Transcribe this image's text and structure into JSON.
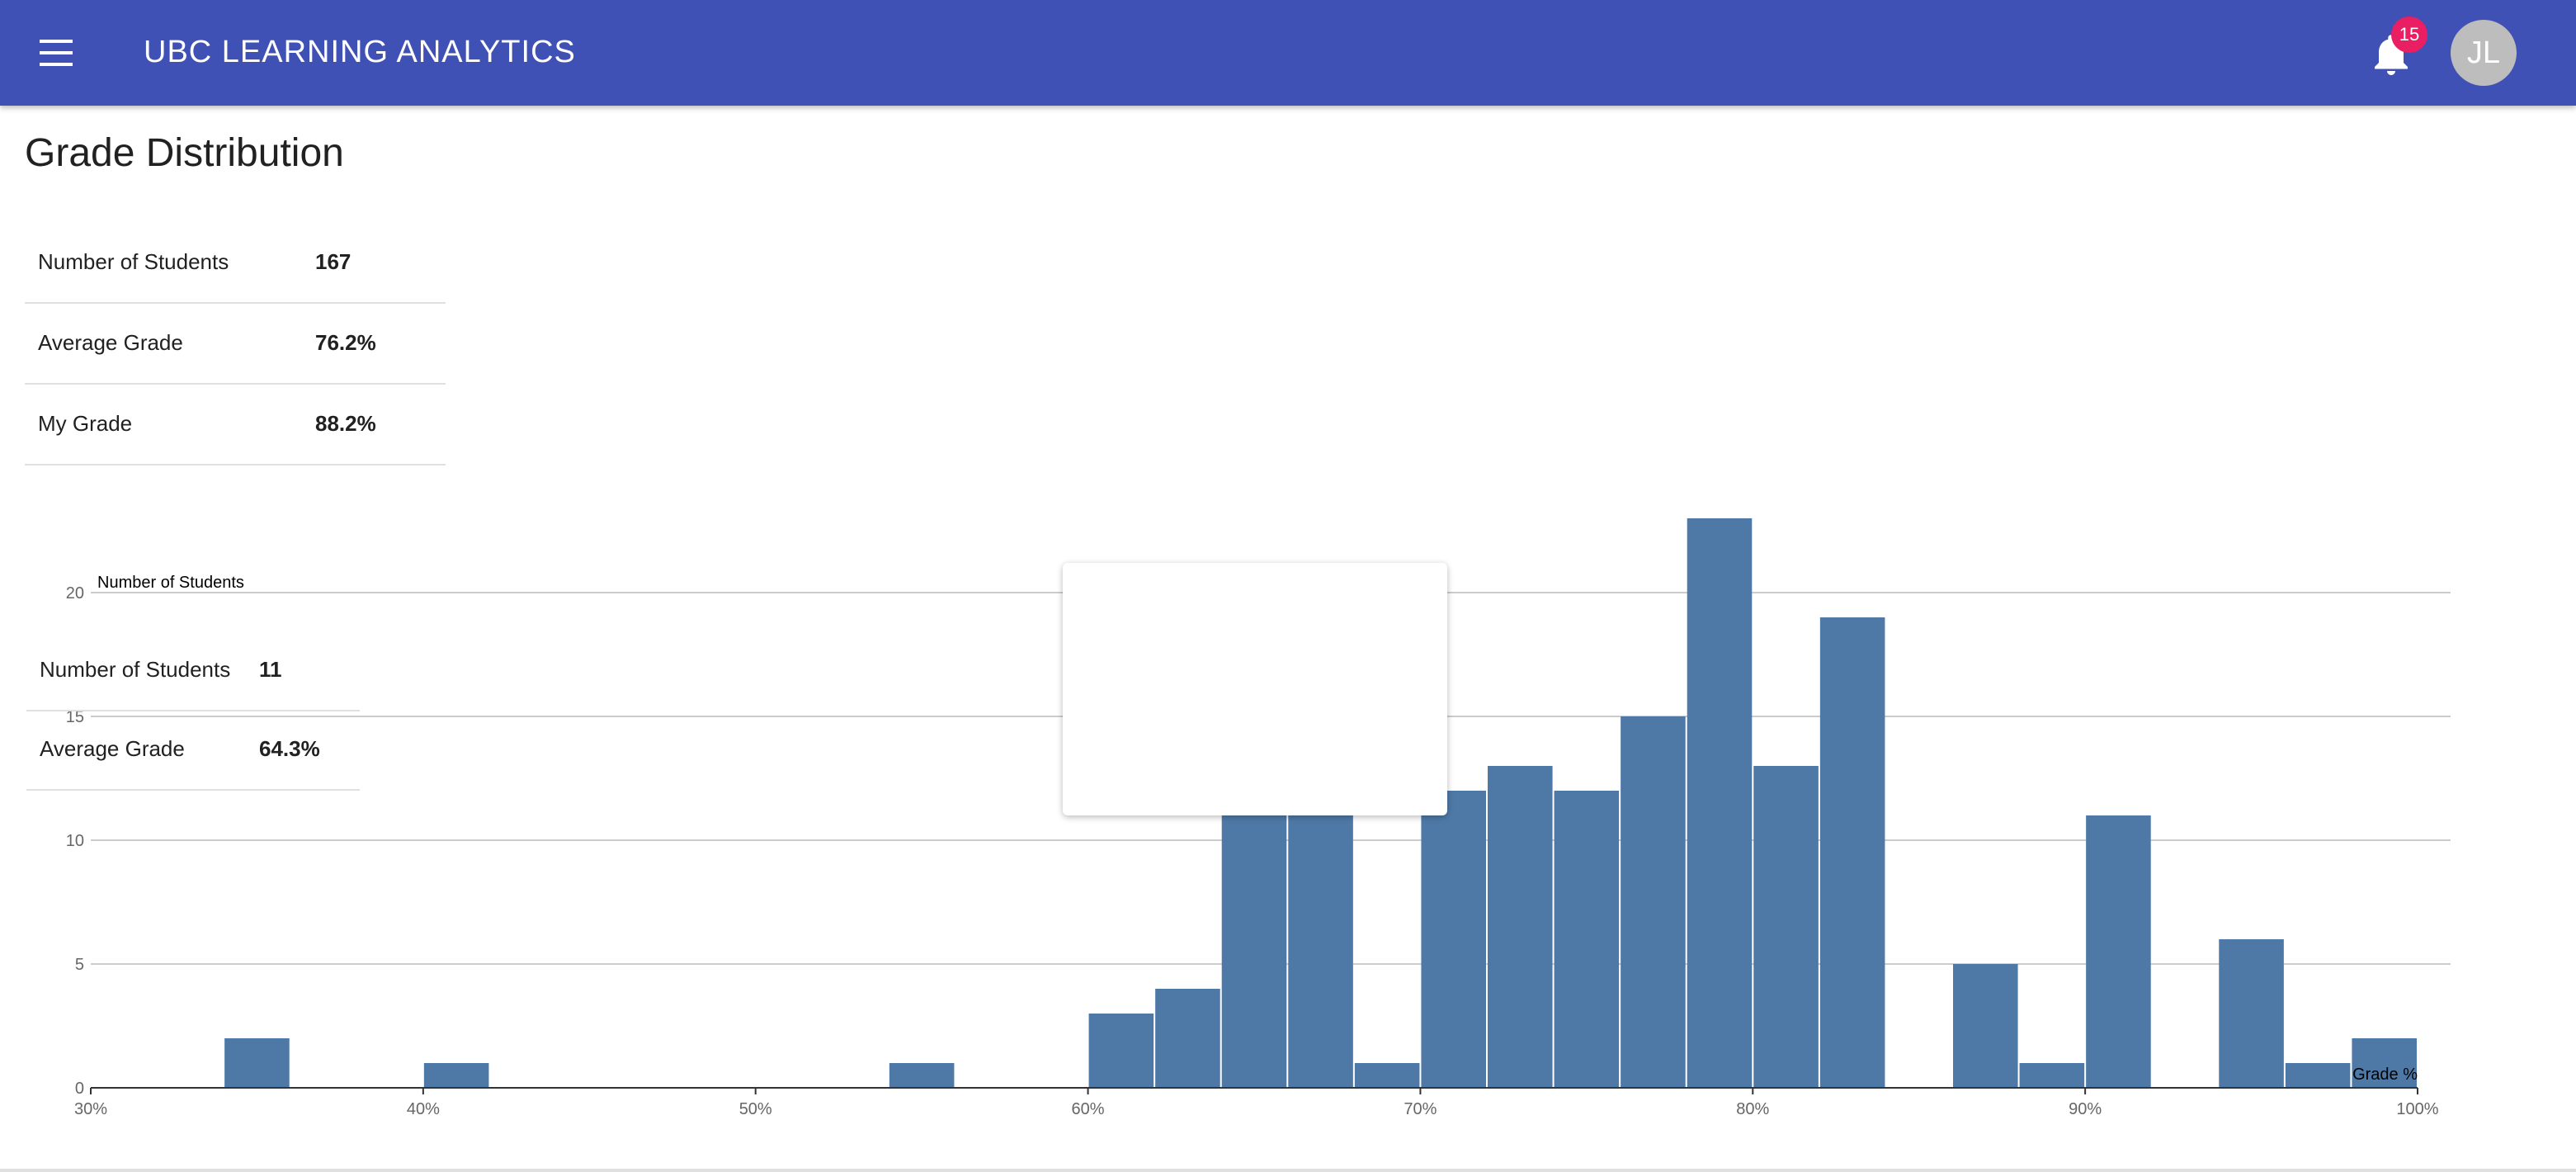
{
  "app": {
    "title": "UBC LEARNING ANALYTICS",
    "notification_count": "15",
    "avatar_initials": "JL",
    "accent": "#3f51b5",
    "badge_color": "#e91e63"
  },
  "icons": {
    "menu": "hamburger-menu-icon",
    "notifications": "bell-icon"
  },
  "page": {
    "title": "Grade Distribution"
  },
  "stats": [
    {
      "label": "Number of Students",
      "value": "167"
    },
    {
      "label": "Average Grade",
      "value": "76.2%"
    },
    {
      "label": "My Grade",
      "value": "88.2%"
    }
  ],
  "tooltip": {
    "rows": [
      {
        "label": "Number of Students",
        "value": "11"
      },
      {
        "label": "Average Grade",
        "value": "64.3%"
      }
    ]
  },
  "chart_data": {
    "type": "bar",
    "ylabel": "Number of Students",
    "xlabel": "Grade %",
    "bar_color": "#4e79a7",
    "xlim": [
      30,
      100
    ],
    "ylim": [
      0,
      23
    ],
    "grid": true,
    "y_ticks": [
      0,
      5,
      10,
      15,
      20
    ],
    "x_ticks": [
      "30%",
      "40%",
      "50%",
      "60%",
      "70%",
      "80%",
      "90%",
      "100%"
    ],
    "bin_width": 2,
    "bins": [
      {
        "x0": 34,
        "value": 2
      },
      {
        "x0": 40,
        "value": 1
      },
      {
        "x0": 54,
        "value": 1
      },
      {
        "x0": 60,
        "value": 3
      },
      {
        "x0": 62,
        "value": 4
      },
      {
        "x0": 64,
        "value": 11
      },
      {
        "x0": 66,
        "value": 11
      },
      {
        "x0": 68,
        "value": 1
      },
      {
        "x0": 70,
        "value": 12
      },
      {
        "x0": 72,
        "value": 13
      },
      {
        "x0": 74,
        "value": 12
      },
      {
        "x0": 76,
        "value": 15
      },
      {
        "x0": 78,
        "value": 23
      },
      {
        "x0": 80,
        "value": 13
      },
      {
        "x0": 82,
        "value": 19
      },
      {
        "x0": 86,
        "value": 5
      },
      {
        "x0": 88,
        "value": 1
      },
      {
        "x0": 90,
        "value": 11
      },
      {
        "x0": 94,
        "value": 6
      },
      {
        "x0": 96,
        "value": 1
      },
      {
        "x0": 98,
        "value": 2
      }
    ]
  }
}
